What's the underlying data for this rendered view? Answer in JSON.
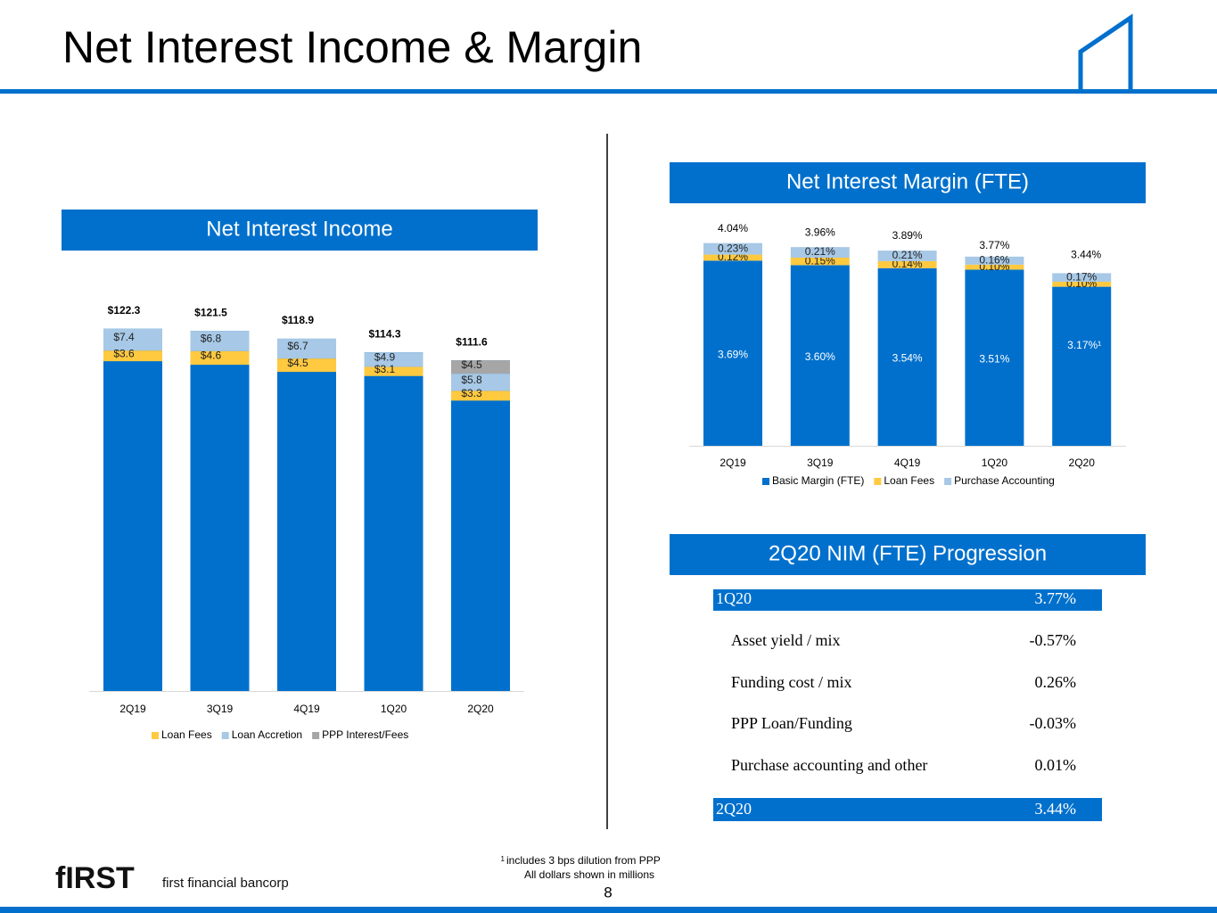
{
  "header": {
    "title": "Net Interest Income & Margin"
  },
  "charts": [
    {
      "chart_data": {
        "type": "bar",
        "title": "Net Interest Income",
        "categories": [
          "2Q19",
          "3Q19",
          "4Q19",
          "1Q20",
          "2Q20"
        ],
        "values": [
          122.3,
          121.5,
          118.9,
          114.3,
          111.6
        ],
        "value_labels": [
          "$122.3",
          "$121.5",
          "$118.9",
          "$114.3",
          "$111.6"
        ],
        "color": "#0070cc",
        "ylim": [
          0,
          130
        ],
        "series": [
          {
            "name": "Loan Fees",
            "color": "#ffc940",
            "values": [
              3.6,
              4.6,
              4.5,
              3.1,
              3.3
            ],
            "value_labels": [
              "$3.6",
              "$4.6",
              "$4.5",
              "$3.1",
              "$3.3"
            ]
          },
          {
            "name": "Loan Accretion",
            "color": "#a7c8e6",
            "values": [
              7.4,
              6.8,
              6.7,
              4.9,
              5.8
            ],
            "value_labels": [
              "$7.4",
              "$6.8",
              "$6.7",
              "$4.9",
              "$5.8"
            ]
          },
          {
            "name": "PPP Interest/Fees",
            "color": "#a6a6a6",
            "values": [
              null,
              null,
              null,
              null,
              4.5
            ],
            "value_labels": [
              null,
              null,
              null,
              null,
              "$4.5"
            ]
          }
        ]
      }
    },
    {
      "chart_data": {
        "type": "stacked-bar",
        "title": "Net Interest Margin (FTE)",
        "categories": [
          "2Q19",
          "3Q19",
          "4Q19",
          "1Q20",
          "2Q20"
        ],
        "values": [
          4.04,
          3.96,
          3.89,
          3.77,
          3.44
        ],
        "value_labels": [
          "4.04%",
          "3.96%",
          "3.89%",
          "3.77%",
          "3.44%"
        ],
        "ylim": [
          0,
          4.3
        ],
        "series": [
          {
            "name": "Basic Margin (FTE)",
            "color": "#0070cc",
            "values": [
              3.69,
              3.6,
              3.54,
              3.51,
              3.17
            ],
            "value_labels": [
              "3.69%",
              "3.60%",
              "3.54%",
              "3.51%",
              "3.17%¹"
            ]
          },
          {
            "name": "Loan Fees",
            "color": "#ffc940",
            "values": [
              0.12,
              0.15,
              0.14,
              0.1,
              0.1
            ],
            "value_labels": [
              "0.12%",
              "0.15%",
              "0.14%",
              "0.10%",
              "0.10%"
            ]
          },
          {
            "name": "Purchase Accounting",
            "color": "#a7c8e6",
            "values": [
              0.23,
              0.21,
              0.21,
              0.16,
              0.17
            ],
            "value_labels": [
              "0.23%",
              "0.21%",
              "0.21%",
              "0.16%",
              "0.17%"
            ]
          }
        ]
      }
    }
  ],
  "table": {
    "title": "2Q20 NIM (FTE) Progression",
    "rows": [
      [
        "1Q20",
        "3.77%"
      ],
      [
        "Asset yield / mix",
        "-0.57%"
      ],
      [
        "Funding cost / mix",
        "0.26%"
      ],
      [
        "PPP Loan/Funding",
        "-0.03%"
      ],
      [
        "Purchase accounting and other",
        "0.01%"
      ],
      [
        "2Q20",
        "3.44%"
      ]
    ]
  },
  "footer": {
    "note_mark": "1",
    "note": "includes 3 bps dilution from PPP",
    "note2": "All dollars shown in millions",
    "page": "8",
    "logo": "fIRST",
    "company": "first financial bancorp"
  }
}
